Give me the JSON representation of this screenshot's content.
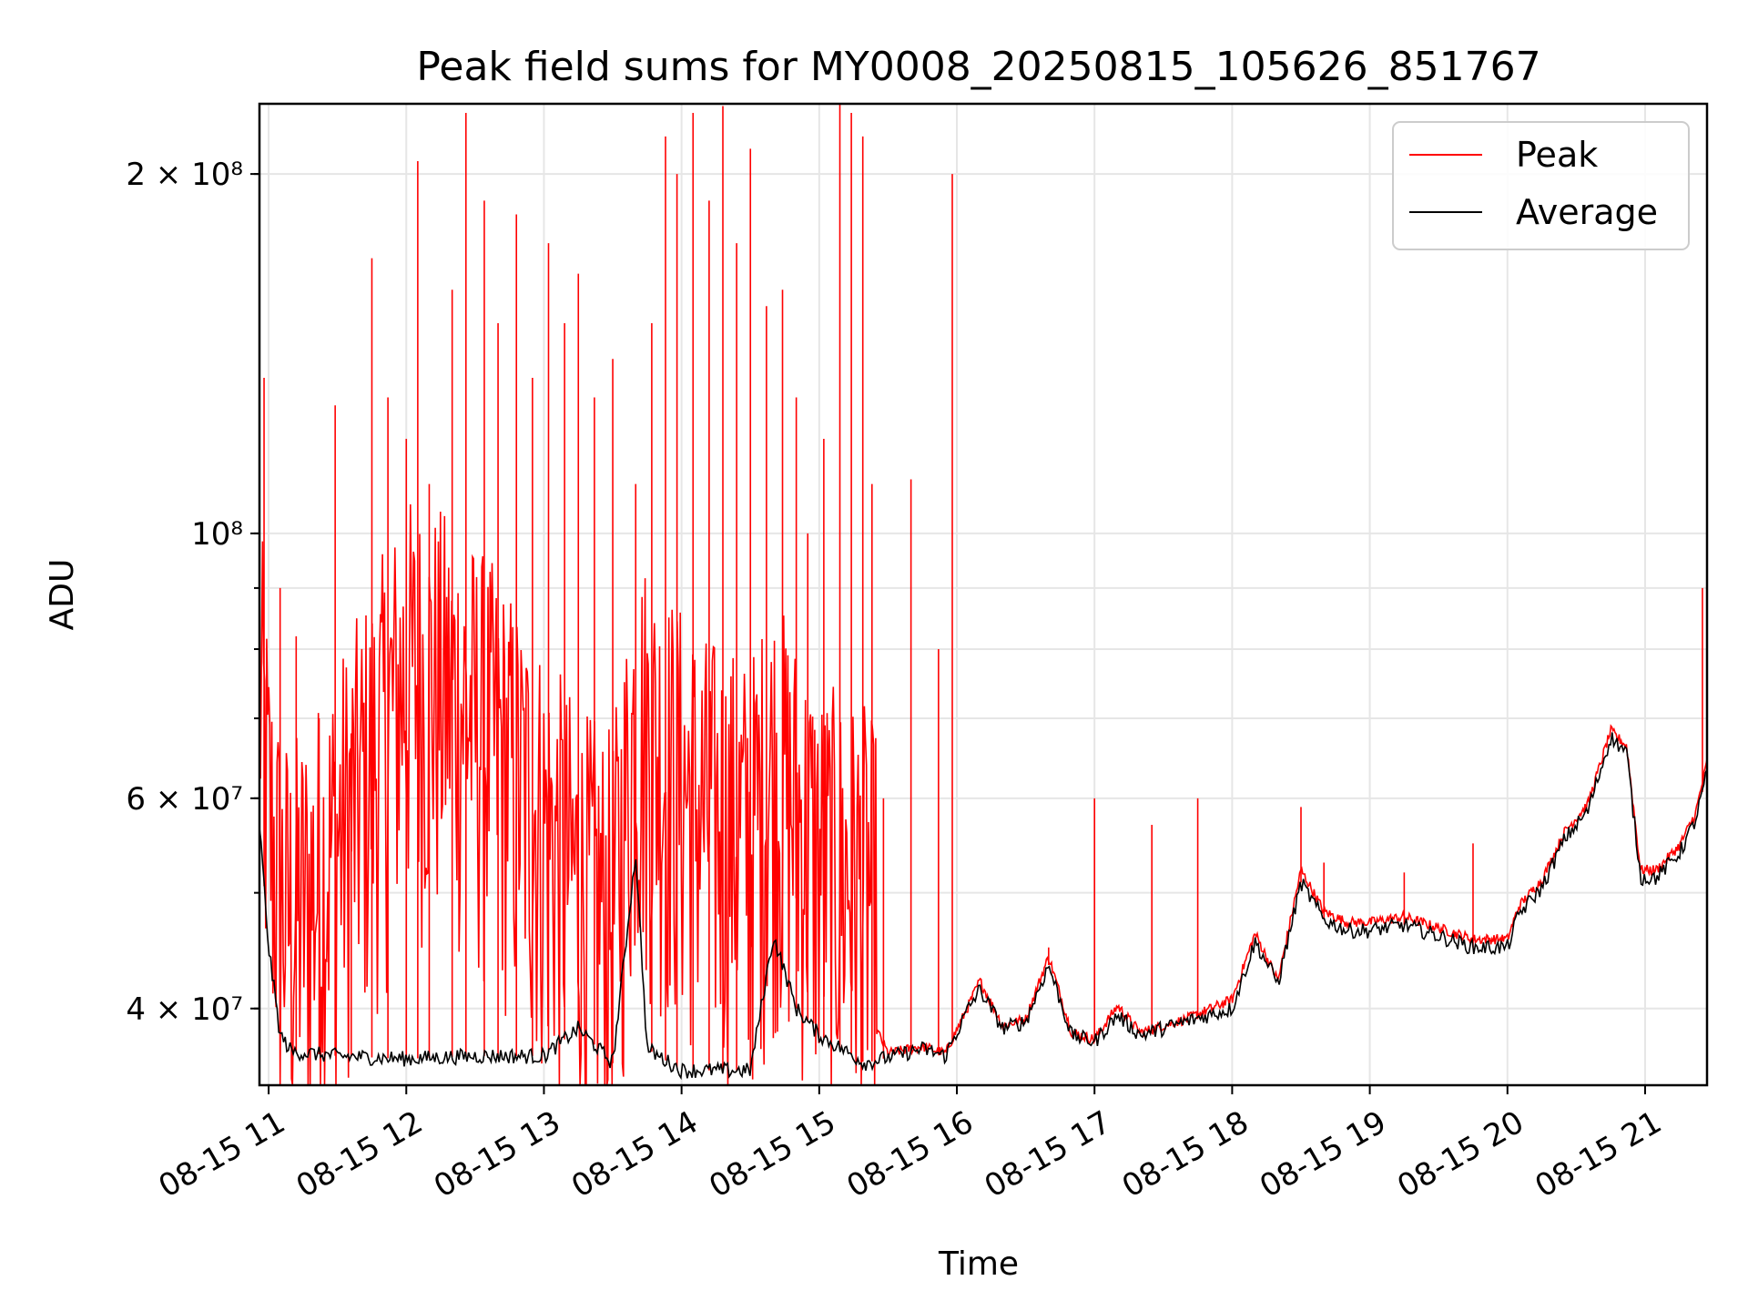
{
  "chart_data": {
    "type": "line",
    "title": "Peak field sums for MY0008_20250815_105626_851767",
    "xlabel": "Time",
    "ylabel": "ADU",
    "y_scale": "log",
    "grid": true,
    "legend_position": "upper right",
    "x_ticks": [
      "08-15 11",
      "08-15 12",
      "08-15 13",
      "08-15 14",
      "08-15 15",
      "08-15 16",
      "08-15 17",
      "08-15 18",
      "08-15 19",
      "08-15 20",
      "08-15 21"
    ],
    "y_ticks": [
      {
        "value": 40000000,
        "label": "4 × 10⁷"
      },
      {
        "value": 60000000,
        "label": "6 × 10⁷"
      },
      {
        "value": 100000000,
        "label": "10⁸"
      },
      {
        "value": 200000000,
        "label": "2 × 10⁸"
      }
    ],
    "x_range": [
      "2025-08-15 10:56",
      "2025-08-15 21:27"
    ],
    "y_range": [
      34500000,
      229000000
    ],
    "series": [
      {
        "name": "Peak",
        "color": "#ff0000",
        "points": [
          [
            "2025-08-15 10:56",
            60000000
          ],
          [
            "2025-08-15 11:00",
            46000000
          ],
          [
            "2025-08-15 11:05",
            39000000
          ],
          [
            "2025-08-15 11:10",
            37500000
          ],
          [
            "2025-08-15 11:20",
            40000000
          ],
          [
            "2025-08-15 11:40",
            48000000
          ],
          [
            "2025-08-15 12:00",
            60000000
          ],
          [
            "2025-08-15 12:20",
            58000000
          ],
          [
            "2025-08-15 12:40",
            52000000
          ],
          [
            "2025-08-15 13:00",
            45000000
          ],
          [
            "2025-08-15 13:15",
            40000000
          ],
          [
            "2025-08-15 13:30",
            38000000
          ],
          [
            "2025-08-15 13:40",
            55000000
          ],
          [
            "2025-08-15 13:55",
            50000000
          ],
          [
            "2025-08-15 14:10",
            46000000
          ],
          [
            "2025-08-15 14:30",
            44000000
          ],
          [
            "2025-08-15 14:40",
            50000000
          ],
          [
            "2025-08-15 15:00",
            42000000
          ],
          [
            "2025-08-15 15:20",
            40000000
          ],
          [
            "2025-08-15 15:30",
            36500000
          ],
          [
            "2025-08-15 15:45",
            37000000
          ],
          [
            "2025-08-15 15:55",
            36500000
          ],
          [
            "2025-08-15 16:05",
            40000000
          ],
          [
            "2025-08-15 16:10",
            42000000
          ],
          [
            "2025-08-15 16:20",
            38500000
          ],
          [
            "2025-08-15 16:30",
            39000000
          ],
          [
            "2025-08-15 16:40",
            44000000
          ],
          [
            "2025-08-15 16:50",
            38000000
          ],
          [
            "2025-08-15 17:00",
            37500000
          ],
          [
            "2025-08-15 17:10",
            40000000
          ],
          [
            "2025-08-15 17:20",
            38000000
          ],
          [
            "2025-08-15 17:40",
            39000000
          ],
          [
            "2025-08-15 18:00",
            40500000
          ],
          [
            "2025-08-15 18:10",
            46000000
          ],
          [
            "2025-08-15 18:20",
            42000000
          ],
          [
            "2025-08-15 18:30",
            52000000
          ],
          [
            "2025-08-15 18:40",
            48000000
          ],
          [
            "2025-08-15 18:50",
            47000000
          ],
          [
            "2025-08-15 19:00",
            47000000
          ],
          [
            "2025-08-15 19:15",
            47500000
          ],
          [
            "2025-08-15 19:30",
            46500000
          ],
          [
            "2025-08-15 19:45",
            45500000
          ],
          [
            "2025-08-15 20:00",
            45500000
          ],
          [
            "2025-08-15 20:05",
            48500000
          ],
          [
            "2025-08-15 20:15",
            51000000
          ],
          [
            "2025-08-15 20:25",
            56000000
          ],
          [
            "2025-08-15 20:35",
            59000000
          ],
          [
            "2025-08-15 20:45",
            68000000
          ],
          [
            "2025-08-15 20:52",
            66000000
          ],
          [
            "2025-08-15 20:58",
            52000000
          ],
          [
            "2025-08-15 21:05",
            52000000
          ],
          [
            "2025-08-15 21:15",
            54500000
          ],
          [
            "2025-08-15 21:22",
            58000000
          ],
          [
            "2025-08-15 21:27",
            64000000
          ]
        ]
      },
      {
        "name": "Average",
        "color": "#000000",
        "points": [
          [
            "2025-08-15 10:56",
            57000000
          ],
          [
            "2025-08-15 11:00",
            45000000
          ],
          [
            "2025-08-15 11:05",
            38000000
          ],
          [
            "2025-08-15 11:10",
            36800000
          ],
          [
            "2025-08-15 11:30",
            36500000
          ],
          [
            "2025-08-15 12:00",
            36300000
          ],
          [
            "2025-08-15 12:30",
            36500000
          ],
          [
            "2025-08-15 13:00",
            36500000
          ],
          [
            "2025-08-15 13:15",
            38500000
          ],
          [
            "2025-08-15 13:30",
            36000000
          ],
          [
            "2025-08-15 13:40",
            54000000
          ],
          [
            "2025-08-15 13:45",
            37000000
          ],
          [
            "2025-08-15 14:00",
            35500000
          ],
          [
            "2025-08-15 14:30",
            35500000
          ],
          [
            "2025-08-15 14:40",
            46000000
          ],
          [
            "2025-08-15 14:50",
            40000000
          ],
          [
            "2025-08-15 15:00",
            38000000
          ],
          [
            "2025-08-15 15:20",
            36000000
          ],
          [
            "2025-08-15 15:45",
            37000000
          ],
          [
            "2025-08-15 15:55",
            36500000
          ],
          [
            "2025-08-15 16:05",
            40000000
          ],
          [
            "2025-08-15 16:10",
            41500000
          ],
          [
            "2025-08-15 16:20",
            38500000
          ],
          [
            "2025-08-15 16:30",
            39000000
          ],
          [
            "2025-08-15 16:40",
            43500000
          ],
          [
            "2025-08-15 16:50",
            38000000
          ],
          [
            "2025-08-15 17:00",
            37500000
          ],
          [
            "2025-08-15 17:10",
            39500000
          ],
          [
            "2025-08-15 17:20",
            38000000
          ],
          [
            "2025-08-15 17:40",
            39000000
          ],
          [
            "2025-08-15 18:00",
            40000000
          ],
          [
            "2025-08-15 18:10",
            45500000
          ],
          [
            "2025-08-15 18:20",
            42000000
          ],
          [
            "2025-08-15 18:30",
            51000000
          ],
          [
            "2025-08-15 18:40",
            47500000
          ],
          [
            "2025-08-15 18:50",
            46500000
          ],
          [
            "2025-08-15 19:00",
            46500000
          ],
          [
            "2025-08-15 19:15",
            47000000
          ],
          [
            "2025-08-15 19:30",
            46000000
          ],
          [
            "2025-08-15 19:45",
            45000000
          ],
          [
            "2025-08-15 20:00",
            45000000
          ],
          [
            "2025-08-15 20:05",
            48000000
          ],
          [
            "2025-08-15 20:15",
            50500000
          ],
          [
            "2025-08-15 20:25",
            55500000
          ],
          [
            "2025-08-15 20:35",
            58500000
          ],
          [
            "2025-08-15 20:45",
            67500000
          ],
          [
            "2025-08-15 20:52",
            65500000
          ],
          [
            "2025-08-15 20:58",
            51500000
          ],
          [
            "2025-08-15 21:05",
            51500000
          ],
          [
            "2025-08-15 21:15",
            54000000
          ],
          [
            "2025-08-15 21:22",
            57500000
          ],
          [
            "2025-08-15 21:27",
            63000000
          ]
        ]
      }
    ],
    "peak_spikes": [
      [
        "2025-08-15 10:58",
        135000000
      ],
      [
        "2025-08-15 11:05",
        90000000
      ],
      [
        "2025-08-15 11:12",
        82000000
      ],
      [
        "2025-08-15 11:22",
        70000000
      ],
      [
        "2025-08-15 11:29",
        128000000
      ],
      [
        "2025-08-15 11:36",
        68000000
      ],
      [
        "2025-08-15 11:45",
        170000000
      ],
      [
        "2025-08-15 11:52",
        130000000
      ],
      [
        "2025-08-15 12:00",
        120000000
      ],
      [
        "2025-08-15 12:05",
        205000000
      ],
      [
        "2025-08-15 12:10",
        110000000
      ],
      [
        "2025-08-15 12:20",
        160000000
      ],
      [
        "2025-08-15 12:26",
        225000000
      ],
      [
        "2025-08-15 12:34",
        190000000
      ],
      [
        "2025-08-15 12:40",
        150000000
      ],
      [
        "2025-08-15 12:48",
        185000000
      ],
      [
        "2025-08-15 12:55",
        135000000
      ],
      [
        "2025-08-15 13:02",
        175000000
      ],
      [
        "2025-08-15 13:09",
        150000000
      ],
      [
        "2025-08-15 13:15",
        165000000
      ],
      [
        "2025-08-15 13:22",
        130000000
      ],
      [
        "2025-08-15 13:30",
        140000000
      ],
      [
        "2025-08-15 13:40",
        110000000
      ],
      [
        "2025-08-15 13:47",
        150000000
      ],
      [
        "2025-08-15 13:53",
        215000000
      ],
      [
        "2025-08-15 13:58",
        200000000
      ],
      [
        "2025-08-15 14:05",
        225000000
      ],
      [
        "2025-08-15 14:12",
        190000000
      ],
      [
        "2025-08-15 14:18",
        228000000
      ],
      [
        "2025-08-15 14:24",
        175000000
      ],
      [
        "2025-08-15 14:30",
        210000000
      ],
      [
        "2025-08-15 14:37",
        155000000
      ],
      [
        "2025-08-15 14:44",
        160000000
      ],
      [
        "2025-08-15 14:50",
        130000000
      ],
      [
        "2025-08-15 14:55",
        100000000
      ],
      [
        "2025-08-15 15:02",
        120000000
      ],
      [
        "2025-08-15 15:09",
        230000000
      ],
      [
        "2025-08-15 15:14",
        225000000
      ],
      [
        "2025-08-15 15:19",
        215000000
      ],
      [
        "2025-08-15 15:23",
        110000000
      ],
      [
        "2025-08-15 15:28",
        60000000
      ],
      [
        "2025-08-15 15:40",
        111000000
      ],
      [
        "2025-08-15 15:52",
        80000000
      ],
      [
        "2025-08-15 15:58",
        200000000
      ],
      [
        "2025-08-15 16:40",
        45000000
      ],
      [
        "2025-08-15 17:00",
        60000000
      ],
      [
        "2025-08-15 17:25",
        57000000
      ],
      [
        "2025-08-15 17:45",
        60000000
      ],
      [
        "2025-08-15 18:30",
        59000000
      ],
      [
        "2025-08-15 18:40",
        53000000
      ],
      [
        "2025-08-15 19:15",
        52000000
      ],
      [
        "2025-08-15 19:45",
        55000000
      ],
      [
        "2025-08-15 21:25",
        90000000
      ]
    ]
  }
}
